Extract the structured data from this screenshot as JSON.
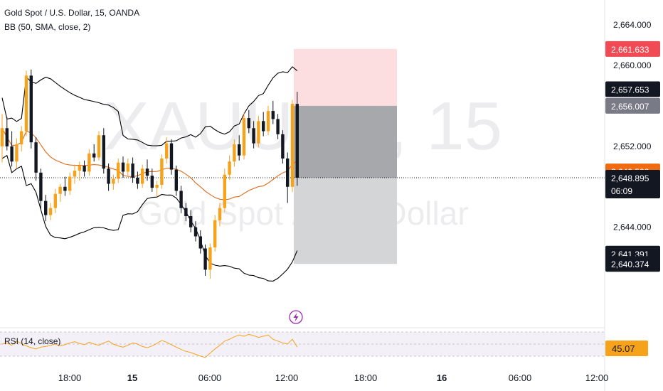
{
  "legend": {
    "symbol_line": "Gold Spot / U.S. Dollar, 15, OANDA",
    "bb_line": "BB (50, SMA, close, 2)",
    "rsi_line": "RSI (14, close)"
  },
  "watermark": {
    "ticker": "XAUUSD, 15",
    "name": "Gold Spot / U.S. Dollar"
  },
  "colors": {
    "up": "#f7a21b",
    "down": "#131722",
    "bb_band": "#000000",
    "bb_basis": "#e0691a",
    "stop_zone": "#fcdde0",
    "target_zone": "#a6a8ab",
    "target_zone2": "#d4d5d7",
    "badge_red": "#f04b55",
    "badge_dark": "#131722",
    "badge_gray": "#787b86",
    "badge_orange": "#f06a0f",
    "rsi_badge": "#f7a21b",
    "rsi_line": "#f7a21b"
  },
  "chart_data": {
    "type": "candlestick",
    "y_range": [
      2638.0,
      2665.0
    ],
    "y_ticks": [
      2664.0,
      2660.0,
      2652.0,
      2644.0
    ],
    "y_tick_labels": [
      "2,664.000",
      "2,660.000",
      "2,652.000",
      "2,644.000"
    ],
    "x_tick_labels": [
      "18:00",
      "15",
      "06:00",
      "12:00",
      "18:00",
      "16",
      "06:00",
      "12:00"
    ],
    "last_price": 2648.895,
    "countdown": "06:09",
    "price_badges": [
      {
        "value": 2661.633,
        "label": "2,661.633",
        "style": "red"
      },
      {
        "value": 2657.653,
        "label": "2,657.653",
        "style": "dark"
      },
      {
        "value": 2656.007,
        "label": "2,656.007",
        "style": "gray"
      },
      {
        "value": 2649.522,
        "label": "2,649.522",
        "style": "orange"
      },
      {
        "value": 2648.895,
        "label": "2,648.895",
        "style": "dark"
      },
      {
        "value": 2641.391,
        "label": "2,641.391",
        "style": "dark"
      },
      {
        "value": 2640.374,
        "label": "2,640.374",
        "style": "dark"
      }
    ],
    "position": {
      "entry": 2656.007,
      "stop": 2661.633,
      "mid": 2648.895,
      "target": 2640.374
    },
    "candles": [
      [
        2652.0,
        2655.2,
        2650.4,
        2653.8
      ],
      [
        2653.8,
        2654.9,
        2651.6,
        2652.0
      ],
      [
        2652.0,
        2653.5,
        2650.0,
        2650.5
      ],
      [
        2650.5,
        2652.8,
        2649.8,
        2652.2
      ],
      [
        2652.2,
        2654.0,
        2651.5,
        2653.5
      ],
      [
        2653.5,
        2659.5,
        2653.0,
        2659.0
      ],
      [
        2659.0,
        2659.6,
        2651.8,
        2652.4
      ],
      [
        2652.4,
        2652.9,
        2648.6,
        2649.4
      ],
      [
        2649.4,
        2649.8,
        2645.8,
        2646.6
      ],
      [
        2646.6,
        2647.2,
        2644.6,
        2645.2
      ],
      [
        2645.2,
        2646.4,
        2644.7,
        2645.9
      ],
      [
        2645.9,
        2647.8,
        2645.4,
        2647.3
      ],
      [
        2647.3,
        2648.3,
        2646.5,
        2648.0
      ],
      [
        2648.0,
        2649.0,
        2647.1,
        2647.6
      ],
      [
        2647.6,
        2649.4,
        2647.2,
        2649.0
      ],
      [
        2649.0,
        2650.2,
        2648.3,
        2649.6
      ],
      [
        2649.6,
        2650.5,
        2648.6,
        2650.1
      ],
      [
        2650.1,
        2650.6,
        2649.0,
        2649.5
      ],
      [
        2649.5,
        2651.7,
        2649.1,
        2651.3
      ],
      [
        2651.3,
        2652.2,
        2650.5,
        2650.9
      ],
      [
        2650.9,
        2653.5,
        2650.6,
        2653.1
      ],
      [
        2653.1,
        2653.8,
        2649.3,
        2649.8
      ],
      [
        2649.8,
        2650.3,
        2647.6,
        2648.3
      ],
      [
        2648.3,
        2649.2,
        2647.7,
        2648.8
      ],
      [
        2648.8,
        2650.8,
        2648.4,
        2650.4
      ],
      [
        2650.4,
        2651.0,
        2648.9,
        2649.5
      ],
      [
        2649.5,
        2650.8,
        2649.1,
        2650.3
      ],
      [
        2650.3,
        2650.9,
        2648.4,
        2648.9
      ],
      [
        2648.9,
        2649.5,
        2647.8,
        2648.3
      ],
      [
        2648.3,
        2650.2,
        2647.9,
        2649.8
      ],
      [
        2649.8,
        2650.7,
        2648.6,
        2649.1
      ],
      [
        2649.1,
        2649.8,
        2647.5,
        2647.9
      ],
      [
        2647.9,
        2648.6,
        2647.0,
        2648.2
      ],
      [
        2648.2,
        2651.2,
        2647.8,
        2650.8
      ],
      [
        2650.8,
        2652.9,
        2650.3,
        2652.3
      ],
      [
        2652.3,
        2652.7,
        2649.2,
        2649.7
      ],
      [
        2649.7,
        2650.1,
        2647.1,
        2647.6
      ],
      [
        2647.6,
        2648.1,
        2645.4,
        2645.9
      ],
      [
        2645.9,
        2646.4,
        2644.6,
        2645.1
      ],
      [
        2645.1,
        2645.7,
        2643.5,
        2644.0
      ],
      [
        2644.0,
        2644.6,
        2642.6,
        2643.1
      ],
      [
        2643.1,
        2643.7,
        2641.4,
        2641.9
      ],
      [
        2641.9,
        2642.3,
        2639.2,
        2639.8
      ],
      [
        2639.8,
        2642.4,
        2638.9,
        2642.0
      ],
      [
        2642.0,
        2645.2,
        2641.6,
        2644.7
      ],
      [
        2644.7,
        2646.4,
        2644.1,
        2645.9
      ],
      [
        2645.9,
        2649.8,
        2645.5,
        2649.2
      ],
      [
        2649.2,
        2651.1,
        2648.7,
        2650.5
      ],
      [
        2650.5,
        2652.7,
        2650.0,
        2652.2
      ],
      [
        2652.2,
        2653.1,
        2650.6,
        2651.1
      ],
      [
        2651.1,
        2655.3,
        2650.7,
        2654.8
      ],
      [
        2654.8,
        2655.6,
        2653.3,
        2653.8
      ],
      [
        2653.8,
        2654.5,
        2651.8,
        2652.3
      ],
      [
        2652.3,
        2655.0,
        2651.9,
        2654.5
      ],
      [
        2654.5,
        2655.4,
        2653.0,
        2653.5
      ],
      [
        2653.5,
        2656.0,
        2653.1,
        2655.5
      ],
      [
        2655.5,
        2656.5,
        2654.2,
        2654.7
      ],
      [
        2654.7,
        2655.2,
        2652.7,
        2653.2
      ],
      [
        2653.2,
        2653.6,
        2650.3,
        2650.8
      ],
      [
        2650.8,
        2651.4,
        2646.4,
        2648.0
      ],
      [
        2648.0,
        2656.6,
        2647.5,
        2656.2
      ],
      [
        2656.2,
        2657.4,
        2648.1,
        2648.9
      ]
    ],
    "rsi": [
      50,
      52,
      48,
      55,
      51,
      47,
      44,
      42,
      45,
      46,
      48,
      50,
      47,
      49,
      52,
      54,
      51,
      49,
      53,
      50,
      48,
      52,
      55,
      50,
      47,
      45,
      48,
      52,
      50,
      46,
      44,
      47,
      51,
      56,
      53,
      49,
      45,
      41,
      38,
      36,
      33,
      30,
      28,
      35,
      42,
      48,
      55,
      58,
      62,
      65,
      63,
      66,
      64,
      61,
      63,
      65,
      58,
      55,
      52,
      50,
      58,
      45.07
    ],
    "rsi_value_label": "45.07"
  }
}
